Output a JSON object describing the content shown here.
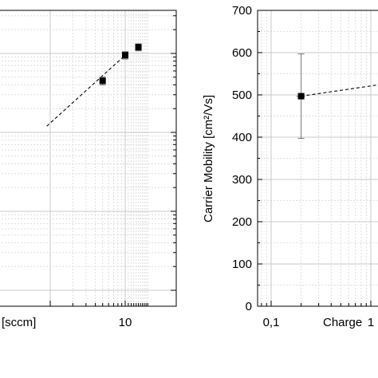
{
  "chart_data": [
    {
      "type": "scatter",
      "panel": "left",
      "xlabel": "[sccm]",
      "ylabel": "",
      "x_scale": "log",
      "y_scale": "log",
      "xlim": [
        0.9,
        21
      ],
      "x_ticks": [
        {
          "value": 10,
          "label": "10"
        }
      ],
      "grid": true,
      "marker": "filled-square",
      "series": [
        {
          "x": [
            5,
            10,
            15
          ],
          "y": [
            0.45,
            0.95,
            1.2
          ],
          "err": [
            0.05,
            0.1,
            0.12
          ]
        }
      ],
      "fit_line": {
        "style": "dashed",
        "x": [
          0.9,
          10
        ],
        "y": [
          0.12,
          0.95
        ]
      }
    },
    {
      "type": "scatter",
      "panel": "right",
      "xlabel": "Charge",
      "ylabel": "Carrier Mobility [cm²/Vs]",
      "x_scale": "log",
      "y_scale": "linear",
      "xlim": [
        0.08,
        1.2
      ],
      "ylim": [
        0,
        700
      ],
      "x_ticks": [
        {
          "value": 0.1,
          "label": "0,1"
        },
        {
          "value": 1,
          "label": "1"
        }
      ],
      "y_ticks": [
        0,
        100,
        200,
        300,
        400,
        500,
        600,
        700
      ],
      "grid": true,
      "marker": "filled-square",
      "series": [
        {
          "x": [
            0.2
          ],
          "y": [
            497
          ],
          "err": [
            100
          ],
          "xerr": [
            0.02
          ]
        }
      ],
      "fit_line": {
        "style": "dashed",
        "x": [
          0.2,
          1.2
        ],
        "y": [
          497,
          524
        ]
      }
    }
  ]
}
